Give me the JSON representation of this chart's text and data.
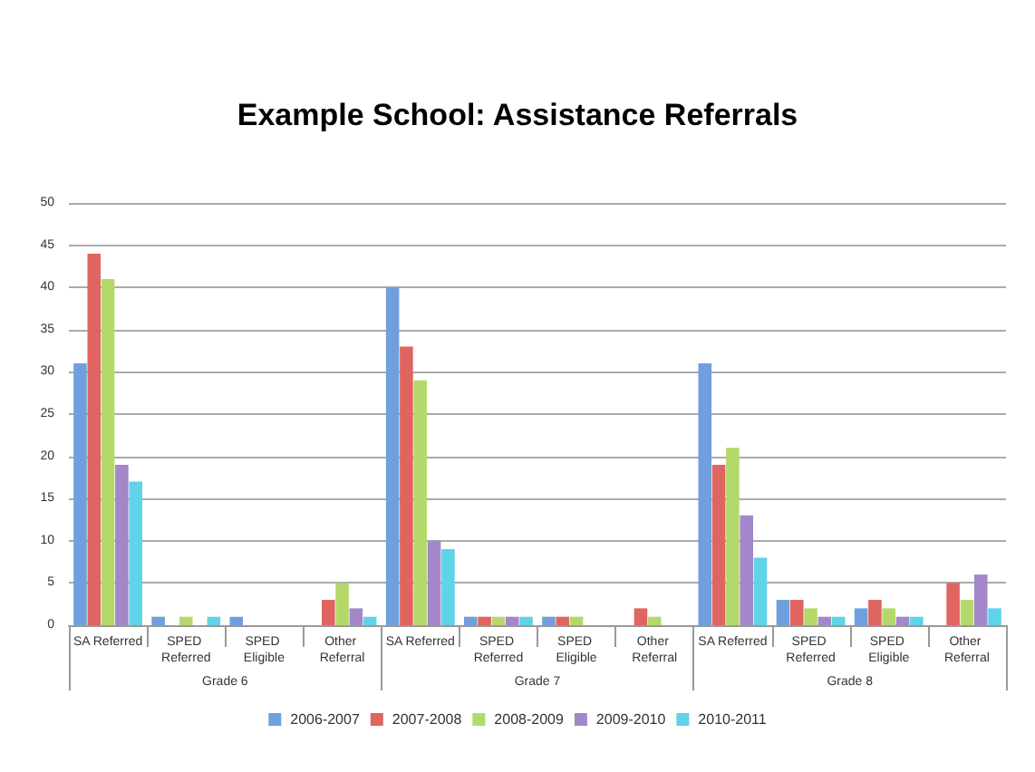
{
  "chart_data": {
    "type": "bar",
    "title": "Example School: Assistance Referrals",
    "categories": [
      "SA Referred",
      "SPED Referred",
      "SPED Eligible",
      "Other Referral",
      "SA Referred",
      "SPED Referred",
      "SPED Eligible",
      "Other Referral",
      "SA Referred",
      "SPED Referred",
      "SPED Eligible",
      "Other Referral"
    ],
    "series": [
      {
        "name": "2006-2007",
        "color": "#6f9fde",
        "values": [
          31,
          1,
          1,
          0,
          40,
          1,
          1,
          0,
          31,
          3,
          2,
          0
        ]
      },
      {
        "name": "2007-2008",
        "color": "#e0645f",
        "values": [
          44,
          0,
          0,
          3,
          33,
          1,
          1,
          2,
          19,
          3,
          3,
          5
        ]
      },
      {
        "name": "2008-2009",
        "color": "#b4d96a",
        "values": [
          41,
          1,
          0,
          5,
          29,
          1,
          1,
          1,
          21,
          2,
          2,
          3
        ]
      },
      {
        "name": "2009-2010",
        "color": "#a387c9",
        "values": [
          19,
          0,
          0,
          2,
          10,
          1,
          0,
          0,
          13,
          1,
          1,
          6
        ]
      },
      {
        "name": "2010-2011",
        "color": "#5fd3e8",
        "values": [
          17,
          1,
          0,
          1,
          9,
          1,
          0,
          0,
          8,
          1,
          1,
          2
        ]
      }
    ],
    "annotations": [
      "Grade 6",
      "Grade 7",
      "Grade 8"
    ],
    "ylim": [
      0,
      50
    ],
    "yticks": [
      0,
      5,
      10,
      15,
      20,
      25,
      30,
      35,
      40,
      45,
      50
    ],
    "grid": "y",
    "legend": "bottom"
  }
}
